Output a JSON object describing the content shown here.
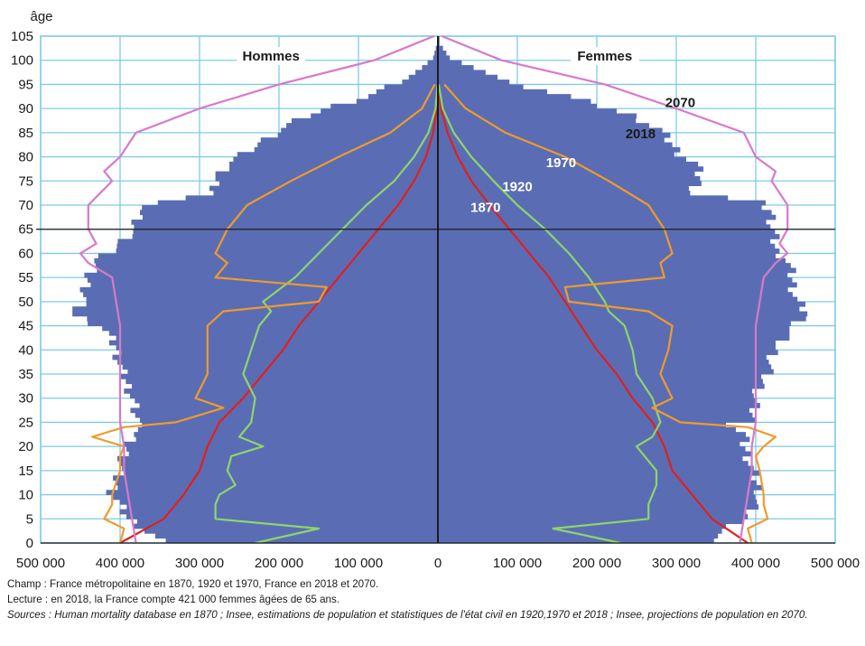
{
  "chart_data": {
    "type": "population-pyramid",
    "ylabel": "âge",
    "y_ticks": [
      0,
      5,
      10,
      15,
      20,
      25,
      30,
      35,
      40,
      45,
      50,
      55,
      60,
      65,
      70,
      75,
      80,
      85,
      90,
      95,
      100,
      105
    ],
    "x_ticks": [
      {
        "v": -500000,
        "label": "500 000"
      },
      {
        "v": -400000,
        "label": "400 000"
      },
      {
        "v": -300000,
        "label": "300 000"
      },
      {
        "v": -200000,
        "label": "200 000"
      },
      {
        "v": -100000,
        "label": "100 000"
      },
      {
        "v": 0,
        "label": "0"
      },
      {
        "v": 100000,
        "label": "100 000"
      },
      {
        "v": 200000,
        "label": "200 000"
      },
      {
        "v": 300000,
        "label": "300 000"
      },
      {
        "v": 400000,
        "label": "400 000"
      },
      {
        "v": 500000,
        "label": "500 000"
      }
    ],
    "xlim": [
      -500000,
      500000
    ],
    "ylim": [
      0,
      105
    ],
    "reference_age": 65,
    "side_labels": {
      "men": "Hommes",
      "women": "Femmes"
    },
    "pyramid_2018": {
      "ages": [
        0,
        5,
        10,
        15,
        20,
        22,
        24,
        25,
        30,
        35,
        40,
        44,
        47,
        50,
        55,
        58,
        60,
        65,
        68,
        70,
        72,
        75,
        78,
        80,
        85,
        88,
        90,
        92,
        95,
        98,
        100,
        103
      ],
      "men": [
        350000,
        392000,
        410000,
        400000,
        390000,
        385000,
        365000,
        380000,
        385000,
        398000,
        405000,
        420000,
        460000,
        445000,
        440000,
        430000,
        410000,
        380000,
        375000,
        360000,
        280000,
        280000,
        265000,
        245000,
        200000,
        165000,
        130000,
        90000,
        45000,
        20000,
        6000,
        1000
      ],
      "women": [
        340000,
        390000,
        405000,
        395000,
        385000,
        385000,
        370000,
        395000,
        400000,
        415000,
        425000,
        445000,
        465000,
        450000,
        445000,
        440000,
        425000,
        421000,
        420000,
        405000,
        320000,
        330000,
        325000,
        305000,
        280000,
        245000,
        205000,
        165000,
        90000,
        45000,
        15000,
        2000
      ]
    },
    "series": [
      {
        "name": "1870",
        "color": "#e0201c",
        "ages": [
          0,
          5,
          10,
          15,
          20,
          25,
          30,
          35,
          40,
          45,
          50,
          55,
          60,
          65,
          70,
          75,
          80,
          85,
          90,
          95
        ],
        "men": [
          400000,
          345000,
          320000,
          300000,
          290000,
          275000,
          245000,
          220000,
          195000,
          175000,
          150000,
          125000,
          100000,
          75000,
          50000,
          30000,
          15000,
          6000,
          1500,
          300
        ],
        "women": [
          390000,
          345000,
          320000,
          295000,
          285000,
          270000,
          245000,
          225000,
          200000,
          180000,
          160000,
          140000,
          115000,
          90000,
          65000,
          42000,
          25000,
          12000,
          4000,
          800
        ]
      },
      {
        "name": "1920",
        "color": "#8fd46c",
        "ages": [
          0,
          3,
          5,
          8,
          10,
          12,
          15,
          18,
          20,
          22,
          25,
          30,
          35,
          40,
          45,
          48,
          50,
          55,
          60,
          65,
          70,
          75,
          80,
          85,
          90,
          95
        ],
        "men": [
          230000,
          150000,
          280000,
          280000,
          275000,
          255000,
          265000,
          260000,
          220000,
          250000,
          235000,
          230000,
          245000,
          235000,
          225000,
          210000,
          220000,
          180000,
          150000,
          120000,
          90000,
          55000,
          30000,
          12000,
          3000,
          500
        ],
        "women": [
          230000,
          145000,
          265000,
          265000,
          270000,
          275000,
          275000,
          260000,
          250000,
          270000,
          280000,
          270000,
          250000,
          245000,
          235000,
          215000,
          210000,
          190000,
          165000,
          135000,
          100000,
          70000,
          42000,
          20000,
          6000,
          1000
        ]
      },
      {
        "name": "1970",
        "color": "#f09a2c",
        "ages": [
          0,
          3,
          5,
          8,
          10,
          15,
          18,
          20,
          22,
          24,
          25,
          28,
          30,
          35,
          40,
          45,
          48,
          50,
          53,
          55,
          58,
          60,
          65,
          70,
          75,
          80,
          85,
          90,
          95
        ],
        "men": [
          400000,
          395000,
          420000,
          410000,
          410000,
          400000,
          400000,
          395000,
          435000,
          395000,
          330000,
          270000,
          305000,
          290000,
          290000,
          290000,
          270000,
          150000,
          140000,
          280000,
          265000,
          280000,
          265000,
          240000,
          185000,
          125000,
          60000,
          20000,
          4000
        ],
        "women": [
          395000,
          390000,
          415000,
          410000,
          410000,
          405000,
          400000,
          410000,
          425000,
          390000,
          305000,
          270000,
          295000,
          280000,
          290000,
          295000,
          265000,
          165000,
          160000,
          285000,
          280000,
          295000,
          285000,
          265000,
          215000,
          160000,
          85000,
          35000,
          8000
        ]
      },
      {
        "name": "2070",
        "color": "#d979c9",
        "ages": [
          0,
          5,
          10,
          15,
          20,
          25,
          30,
          35,
          40,
          45,
          50,
          55,
          58,
          60,
          62,
          65,
          70,
          75,
          77,
          80,
          85,
          90,
          95,
          100,
          105
        ],
        "men": [
          380000,
          385000,
          390000,
          395000,
          395000,
          400000,
          400000,
          400000,
          400000,
          400000,
          405000,
          410000,
          440000,
          450000,
          430000,
          440000,
          440000,
          410000,
          420000,
          400000,
          380000,
          300000,
          200000,
          80000,
          5000
        ],
        "women": [
          380000,
          385000,
          390000,
          395000,
          395000,
          400000,
          400000,
          400000,
          400000,
          400000,
          405000,
          410000,
          425000,
          440000,
          430000,
          440000,
          440000,
          420000,
          425000,
          400000,
          385000,
          300000,
          210000,
          80000,
          5000
        ]
      }
    ],
    "series_labels": [
      {
        "name": "1870",
        "color": "#ffffff",
        "x": 60000,
        "y": 69.5
      },
      {
        "name": "1920",
        "color": "#ffffff",
        "x": 100000,
        "y": 73.8
      },
      {
        "name": "1970",
        "color": "#ffffff",
        "x": 155000,
        "y": 78.8
      },
      {
        "name": "2018",
        "color": "#1a1a1a",
        "x": 255000,
        "y": 84.8
      },
      {
        "name": "2070",
        "color": "#1a1a1a",
        "x": 305000,
        "y": 91.2
      }
    ],
    "grid": true
  },
  "notes": {
    "champ": "Champ : France métropolitaine en 1870, 1920 et 1970, France en 2018 et 2070.",
    "lecture": "Lecture : en 2018, la France compte 421 000 femmes âgées de 65 ans.",
    "sources": "Sources : Human mortality database en 1870 ; Insee, estimations de population et statistiques de l'état civil en 1920,1970 et 2018 ; Insee, projections de population en 2070."
  },
  "colors": {
    "pyramid": "#5a6db4",
    "grid": "#7ecbe8",
    "axis": "#1a1a1a"
  }
}
